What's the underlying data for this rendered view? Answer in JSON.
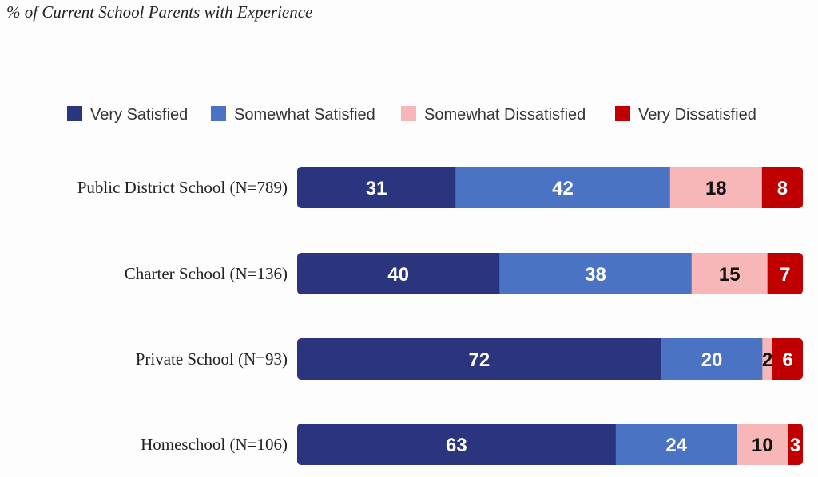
{
  "chart_data": {
    "type": "bar",
    "orientation": "horizontal",
    "stacked": true,
    "subtitle": "% of Current School Parents with Experience",
    "categories": [
      "Public District School (N=789)",
      "Charter School (N=136)",
      "Private School (N=93)",
      "Homeschool (N=106)"
    ],
    "series": [
      {
        "name": "Very Satisfied",
        "color": "#2a357e",
        "label_color": "#ffffff",
        "values": [
          31,
          40,
          72,
          63
        ]
      },
      {
        "name": "Somewhat Satisfied",
        "color": "#4a73c4",
        "label_color": "#ffffff",
        "values": [
          42,
          38,
          20,
          24
        ]
      },
      {
        "name": "Somewhat Dissatisfied",
        "color": "#f7b6b8",
        "label_color": "#111111",
        "values": [
          18,
          15,
          2,
          10
        ]
      },
      {
        "name": "Very Dissatisfied",
        "color": "#c00000",
        "label_color": "#ffffff",
        "values": [
          8,
          7,
          6,
          3
        ]
      }
    ],
    "legend_position": "top",
    "grid": false
  }
}
